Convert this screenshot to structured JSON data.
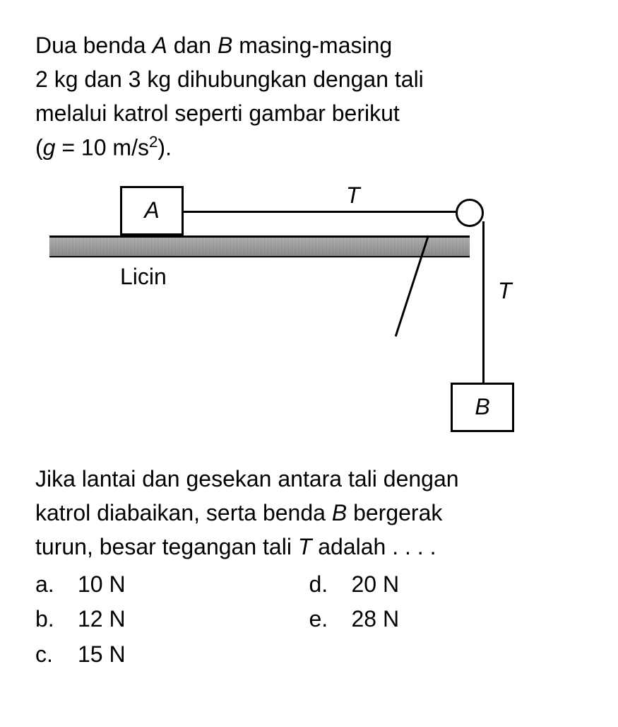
{
  "question": {
    "line1_part1": "Dua benda ",
    "line1_A": "A",
    "line1_part2": " dan ",
    "line1_B": "B",
    "line1_part3": " masing-masing",
    "line2": "2 kg dan 3 kg dihubungkan dengan tali",
    "line3": "melalui katrol seperti gambar berikut",
    "line4_open": "(",
    "line4_g": "g",
    "line4_eq": " = 10 m/s",
    "line4_exp": "2",
    "line4_close": ")."
  },
  "diagram": {
    "block_a_label": "A",
    "block_b_label": "B",
    "tension_label_1": "T",
    "tension_label_2": "T",
    "surface_label": "Licin",
    "colors": {
      "stroke": "#000000",
      "background": "#ffffff",
      "surface_fill": "#999999"
    },
    "stroke_width": 3
  },
  "question2": {
    "line1": "Jika lantai dan gesekan antara tali dengan",
    "line2_part1": "katrol diabaikan, serta benda ",
    "line2_B": "B",
    "line2_part2": " bergerak",
    "line3_part1": "turun, besar tegangan tali ",
    "line3_T": "T",
    "line3_part2": " adalah . . . ."
  },
  "options": {
    "a": {
      "letter": "a.",
      "value": "10 N"
    },
    "b": {
      "letter": "b.",
      "value": "12 N"
    },
    "c": {
      "letter": "c.",
      "value": "15 N"
    },
    "d": {
      "letter": "d.",
      "value": "20 N"
    },
    "e": {
      "letter": "e.",
      "value": "28 N"
    }
  }
}
